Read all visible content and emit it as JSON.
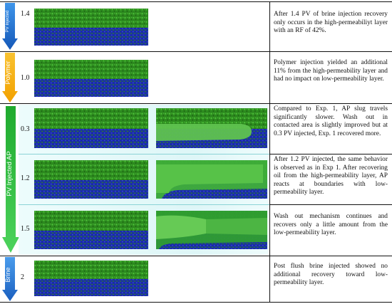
{
  "stages": {
    "brine": {
      "label": "PV Injected",
      "pv_values": [
        "1.4"
      ]
    },
    "polymer": {
      "label": "Polymer",
      "pv_values": [
        "1.0"
      ]
    },
    "ap": {
      "label": "PV Injected AP",
      "pv_values": [
        "0.3",
        "1.2",
        "1.5"
      ]
    },
    "postflush": {
      "label": "Brine",
      "pv_values": [
        "2"
      ]
    }
  },
  "rows": [
    {
      "pv": "1.4",
      "text": "After 1.4 PV of brine injection recovery only occurs in the high-permeabiliyt layer with an RF of 42%."
    },
    {
      "pv": "1.0",
      "text": "Polymer injection yielded an additional 11% from the high-permeability layer and had no impact on low-permeability layer."
    },
    {
      "pv": "0.3",
      "text": "Compared to Exp. 1, AP slug travels significantly slower. Wash out in contacted area is slightly improved but at 0.3 PV injected, Exp. 1 recovered more."
    },
    {
      "pv": "1.2",
      "text": "After 1.2 PV injected, the same behavior is observed as in Exp 1. After recovering oil from the high-permeability layer, AP reacts at boundaries with low-permeability layer."
    },
    {
      "pv": "1.5",
      "text": "Wash out mechanism continues and recovers only a little amount from the low-permeability layer."
    },
    {
      "pv": "2",
      "text": "Post flush brine injected showed no additional recovery toward low-permeability layer."
    }
  ],
  "colors": {
    "brine_arrow": "#1e74d6",
    "polymer_arrow": "#f5b21c",
    "ap_arrow": "#37c24a",
    "ap_glow": "#c7f5f5",
    "postflush_arrow": "#2b7fd9",
    "grain_green": "#2f8f1f",
    "pore_blue": "#1d2bb0"
  }
}
